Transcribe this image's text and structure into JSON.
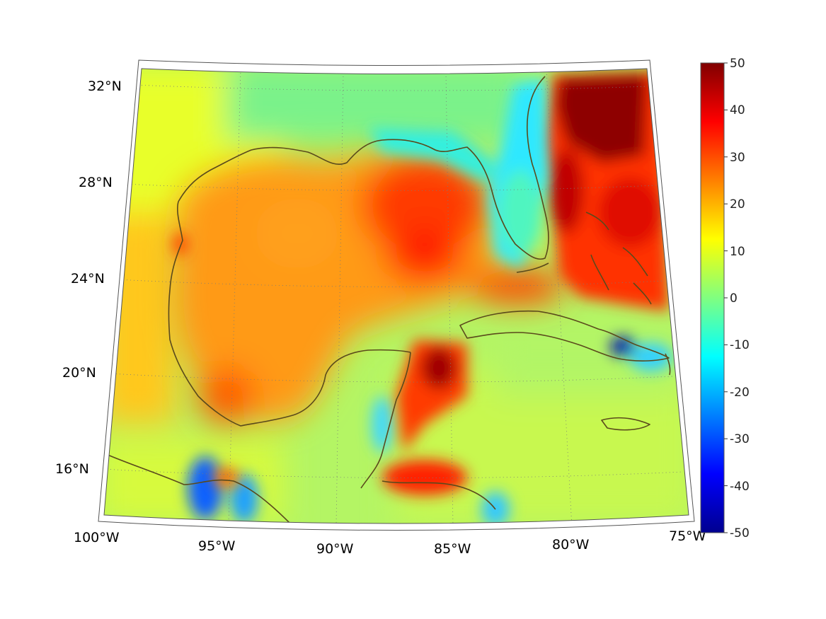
{
  "map": {
    "projection": "conic",
    "region": "Gulf of Mexico and Caribbean",
    "lon_range": [
      -100,
      -75
    ],
    "lat_range": [
      14,
      33
    ],
    "colormap": "jet",
    "lon_ticks": [
      {
        "value": -100,
        "label": "100°W"
      },
      {
        "value": -95,
        "label": "95°W"
      },
      {
        "value": -90,
        "label": "90°W"
      },
      {
        "value": -85,
        "label": "85°W"
      },
      {
        "value": -80,
        "label": "80°W"
      },
      {
        "value": -75,
        "label": "75°W"
      }
    ],
    "lat_ticks": [
      {
        "value": 32,
        "label": "32°N"
      },
      {
        "value": 28,
        "label": "28°N"
      },
      {
        "value": 24,
        "label": "24°N"
      },
      {
        "value": 20,
        "label": "20°N"
      },
      {
        "value": 16,
        "label": "16°N"
      }
    ],
    "coastline_color": "#5a4a1c",
    "graticule": "dotted"
  },
  "colorbar": {
    "min": -50,
    "max": 50,
    "ticks": [
      "50",
      "40",
      "30",
      "20",
      "10",
      "0",
      "-10",
      "-20",
      "-30",
      "-40",
      "-50"
    ],
    "colors": [
      "#00008f",
      "#0000ff",
      "#0080ff",
      "#00ffff",
      "#80ff80",
      "#ffff00",
      "#ff8000",
      "#ff0000",
      "#800000"
    ]
  }
}
